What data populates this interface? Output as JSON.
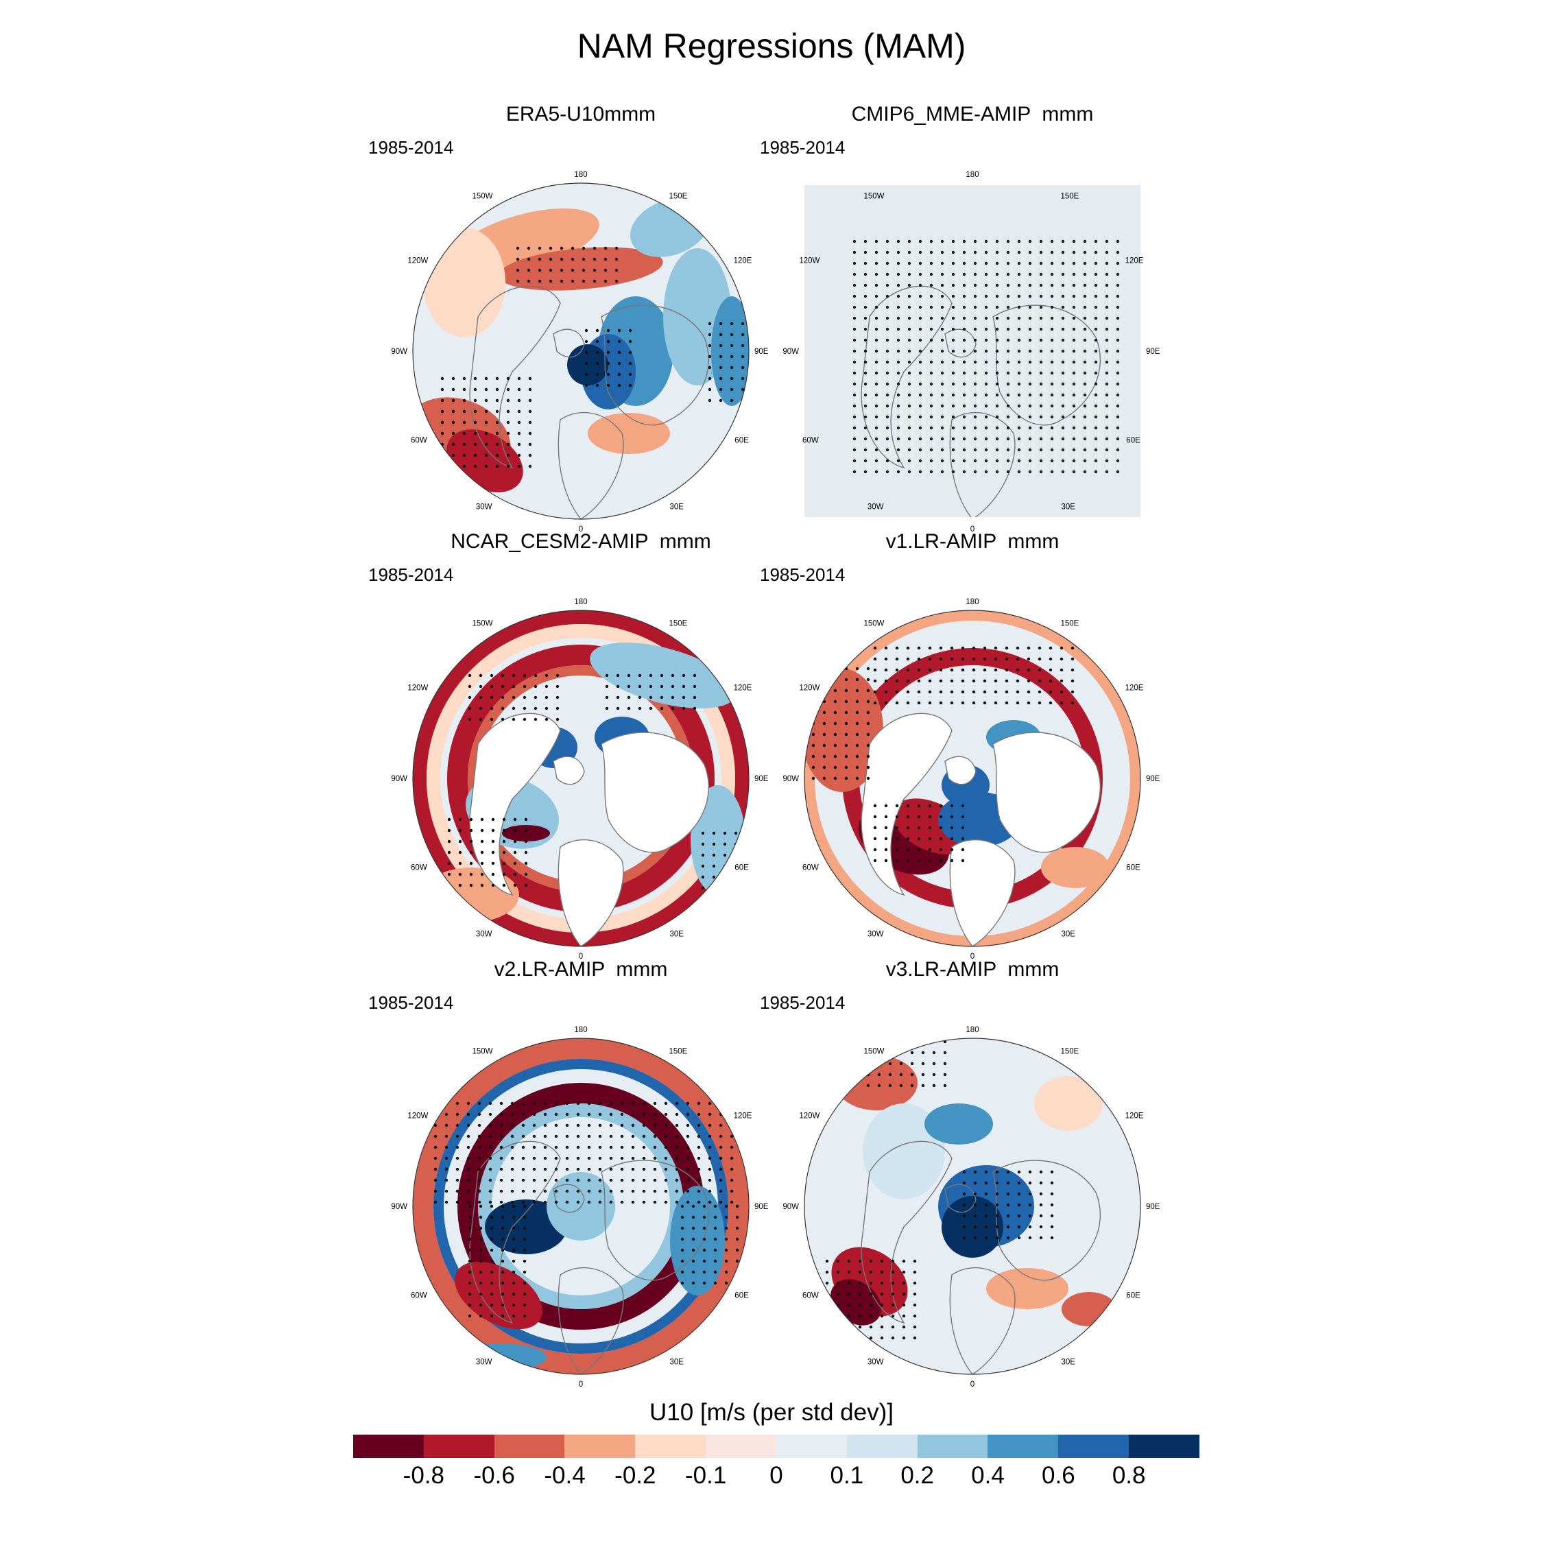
{
  "figure_title": "NAM Regressions (MAM)",
  "colorbar": {
    "title": "U10 [m/s (per std dev)]",
    "tick_labels": [
      "-0.8",
      "-0.6",
      "-0.4",
      "-0.2",
      "-0.1",
      "0",
      "0.1",
      "0.2",
      "0.4",
      "0.6",
      "0.8"
    ],
    "colors": [
      "#67001f",
      "#b2182b",
      "#d6604d",
      "#f4a582",
      "#fddbc7",
      "#f9e6e0",
      "#e6eef4",
      "#d1e5f0",
      "#92c5de",
      "#4393c3",
      "#2166ac",
      "#053061"
    ]
  },
  "lon_labels": {
    "top": "180",
    "bottom": "0",
    "left": "90W",
    "right": "90E",
    "upper_left": [
      "150W",
      "120W"
    ],
    "upper_right": [
      "150E",
      "120E"
    ],
    "lower_left": [
      "60W",
      "30W"
    ],
    "lower_right": [
      "60E",
      "30E"
    ]
  },
  "panels": [
    {
      "title": "ERA5-U10mmm",
      "period": "1985-2014",
      "style": "full"
    },
    {
      "title": "CMIP6_MME-AMIP  mmm",
      "period": "1985-2014",
      "style": "stipple"
    },
    {
      "title": "NCAR_CESM2-AMIP  mmm",
      "period": "1985-2014",
      "style": "masked"
    },
    {
      "title": "v1.LR-AMIP  mmm",
      "period": "1985-2014",
      "style": "masked"
    },
    {
      "title": "v2.LR-AMIP  mmm",
      "period": "1985-2014",
      "style": "full"
    },
    {
      "title": "v3.LR-AMIP  mmm",
      "period": "1985-2014",
      "style": "full"
    }
  ]
}
